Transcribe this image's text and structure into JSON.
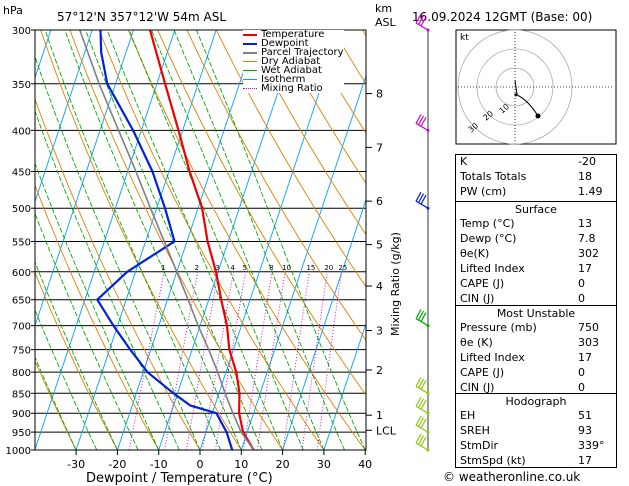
{
  "header": {
    "pressure_unit": "hPa",
    "location": "57°12'N  357°12'W  54m  ASL",
    "alt_unit": "km\nASL",
    "datetime": "16.09.2024  12GMT  (Base: 00)"
  },
  "chart_data": {
    "type": "line",
    "subtype": "skew-T log-P diagram",
    "xlabel": "Dewpoint / Temperature (°C)",
    "ylabel": "hPa",
    "right_label": "Mixing Ratio (g/kg)",
    "x_ticks": [
      -30,
      -20,
      -10,
      0,
      10,
      20,
      30,
      40
    ],
    "pressure_levels": [
      300,
      350,
      400,
      450,
      500,
      550,
      600,
      650,
      700,
      750,
      800,
      850,
      900,
      950,
      1000
    ],
    "km_ticks": [
      {
        "km": "8",
        "p": 360
      },
      {
        "km": "7",
        "p": 420
      },
      {
        "km": "6",
        "p": 490
      },
      {
        "km": "5",
        "p": 555
      },
      {
        "km": "4",
        "p": 625
      },
      {
        "km": "3",
        "p": 710
      },
      {
        "km": "2",
        "p": 795
      },
      {
        "km": "1",
        "p": 905
      },
      {
        "km": "LCL",
        "p": 945
      }
    ],
    "mixing_ratio_labels": [
      "1",
      "2",
      "3",
      "4",
      "5",
      "8",
      "10",
      "15",
      "20",
      "25"
    ],
    "mixing_ratio_values": [
      1,
      2,
      3,
      4,
      5,
      8,
      10,
      15,
      20,
      25
    ],
    "series": [
      {
        "name": "Temperature",
        "color": "#ee0000",
        "points": [
          [
            1000,
            13
          ],
          [
            950,
            9
          ],
          [
            900,
            6.5
          ],
          [
            850,
            5
          ],
          [
            800,
            2.5
          ],
          [
            750,
            -1
          ],
          [
            700,
            -3.5
          ],
          [
            650,
            -7
          ],
          [
            600,
            -10.5
          ],
          [
            550,
            -15
          ],
          [
            500,
            -19
          ],
          [
            450,
            -25
          ],
          [
            400,
            -31
          ],
          [
            350,
            -38
          ],
          [
            300,
            -46
          ]
        ]
      },
      {
        "name": "Dewpoint",
        "color": "#0022dd",
        "points": [
          [
            1000,
            7.8
          ],
          [
            950,
            5
          ],
          [
            900,
            1
          ],
          [
            880,
            -6
          ],
          [
            850,
            -11
          ],
          [
            800,
            -19
          ],
          [
            750,
            -25
          ],
          [
            700,
            -31
          ],
          [
            650,
            -37
          ],
          [
            600,
            -32
          ],
          [
            550,
            -23
          ],
          [
            500,
            -28
          ],
          [
            450,
            -34
          ],
          [
            400,
            -42
          ],
          [
            350,
            -52
          ],
          [
            320,
            -56
          ],
          [
            300,
            -58
          ]
        ]
      },
      {
        "name": "Parcel Trajectory",
        "color": "#808080",
        "points": [
          [
            1000,
            13
          ],
          [
            950,
            8.5
          ],
          [
            900,
            5
          ],
          [
            850,
            1.5
          ],
          [
            800,
            -2
          ],
          [
            750,
            -6
          ],
          [
            700,
            -10.5
          ],
          [
            650,
            -15
          ],
          [
            600,
            -20
          ],
          [
            550,
            -25.5
          ],
          [
            500,
            -31.5
          ],
          [
            450,
            -38
          ],
          [
            400,
            -45.5
          ],
          [
            350,
            -54
          ],
          [
            300,
            -63
          ]
        ]
      }
    ],
    "legend": [
      "Temperature",
      "Dewpoint",
      "Parcel Trajectory",
      "Dry Adiabat",
      "Wet Adiabat",
      "Isotherm",
      "Mixing Ratio"
    ],
    "legend_colors": [
      "#ee0000",
      "#0022dd",
      "#808080",
      "#e08000",
      "#00aa00",
      "#00a0ff",
      "#cc00cc"
    ],
    "wind_barbs": [
      {
        "p": 300,
        "color": "#cc00cc"
      },
      {
        "p": 400,
        "color": "#cc00cc"
      },
      {
        "p": 500,
        "color": "#0022dd"
      },
      {
        "p": 700,
        "color": "#00aa00"
      },
      {
        "p": 850,
        "color": "#88cc00"
      },
      {
        "p": 900,
        "color": "#88cc00"
      },
      {
        "p": 950,
        "color": "#88cc00"
      },
      {
        "p": 1000,
        "color": "#88cc00"
      }
    ]
  },
  "hodograph": {
    "unit": "kt",
    "ring_labels": [
      "10",
      "20",
      "30"
    ]
  },
  "indices": [
    {
      "k": "K",
      "v": "-20"
    },
    {
      "k": "Totals Totals",
      "v": "18"
    },
    {
      "k": "PW (cm)",
      "v": "1.49"
    }
  ],
  "surface": {
    "title": "Surface",
    "rows": [
      {
        "k": "Temp (°C)",
        "v": "13"
      },
      {
        "k": "Dewp (°C)",
        "v": "7.8"
      },
      {
        "k": "θe(K)",
        "v": "302"
      },
      {
        "k": "Lifted Index",
        "v": "17"
      },
      {
        "k": "CAPE (J)",
        "v": "0"
      },
      {
        "k": "CIN (J)",
        "v": "0"
      }
    ]
  },
  "most_unstable": {
    "title": "Most Unstable",
    "rows": [
      {
        "k": "Pressure (mb)",
        "v": "750"
      },
      {
        "k": "θe (K)",
        "v": "303"
      },
      {
        "k": "Lifted Index",
        "v": "17"
      },
      {
        "k": "CAPE (J)",
        "v": "0"
      },
      {
        "k": "CIN (J)",
        "v": "0"
      }
    ]
  },
  "hodo_table": {
    "title": "Hodograph",
    "rows": [
      {
        "k": "EH",
        "v": "51"
      },
      {
        "k": "SREH",
        "v": "93"
      },
      {
        "k": "StmDir",
        "v": "339°"
      },
      {
        "k": "StmSpd (kt)",
        "v": "17"
      }
    ]
  },
  "footer": {
    "credit": "© weatheronline.co.uk"
  }
}
